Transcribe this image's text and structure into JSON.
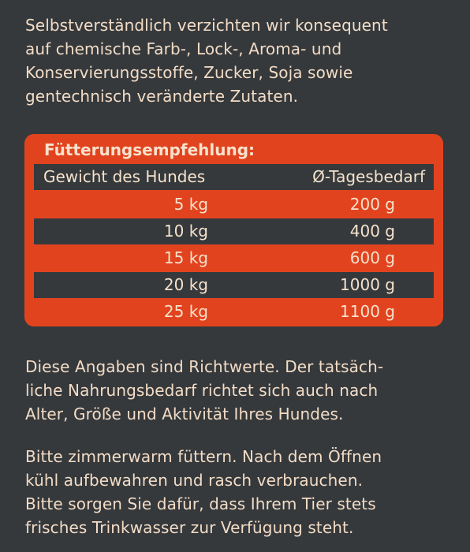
{
  "intro_text": "Selbstverständlich verzichten wir konsequent\nauf chemische Farb-, Lock-, Aroma- und\nKonservierungsstoffe, Zucker, Soja sowie\ngentechnisch veränderte Zutaten.",
  "feeding": {
    "title": "Fütterungsempfehlung:",
    "header": {
      "weight": "Gewicht des Hundes",
      "daily": "Ø-Tagesbedarf"
    },
    "rows": [
      {
        "weight": "5 kg",
        "amount": "200 g"
      },
      {
        "weight": "10 kg",
        "amount": "400 g"
      },
      {
        "weight": "15 kg",
        "amount": "600 g"
      },
      {
        "weight": "20 kg",
        "amount": "1000 g"
      },
      {
        "weight": "25 kg",
        "amount": "1100 g"
      }
    ]
  },
  "note_text": "Diese Angaben sind Richtwerte. Der tatsäch-\nliche Nahrungsbedarf richtet sich auch nach\nAlter, Größe und Aktivität Ihres Hundes.",
  "care_text": "Bitte zimmerwarm füttern. Nach dem Öffnen\nkühl aufbewahren und rasch verbrauchen.\nBitte sorgen Sie dafür, dass Ihrem Tier stets\nfrisches Trinkwasser zur Verfügung steht.",
  "colors": {
    "background": "#35393c",
    "accent": "#e2431f",
    "text": "#f3dcc6"
  }
}
